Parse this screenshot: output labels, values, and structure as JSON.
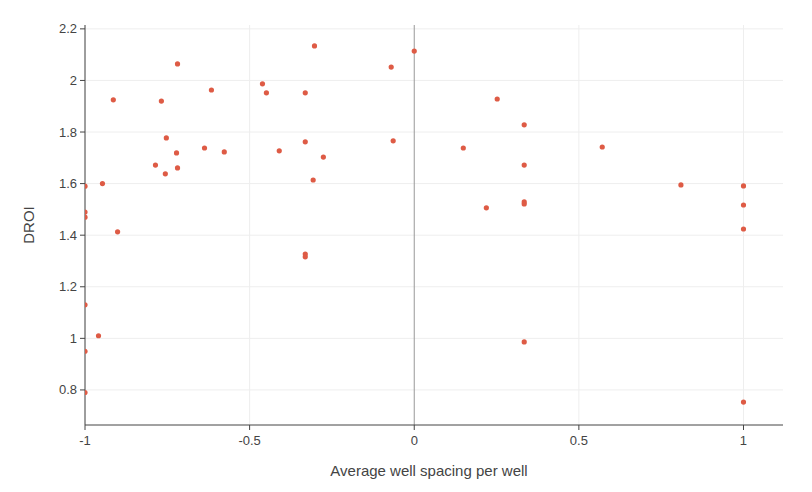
{
  "chart_data": {
    "type": "scatter",
    "x_label": "Average well spacing per well",
    "y_label": "DROI",
    "x": [
      -1,
      -1,
      -1,
      -1,
      -1,
      -1,
      -0.959,
      -0.947,
      -0.914,
      -0.901,
      -0.786,
      -0.768,
      -0.753,
      -0.756,
      -0.719,
      -0.722,
      -0.719,
      -0.637,
      -0.616,
      -0.577,
      -0.461,
      -0.449,
      -0.41,
      -0.331,
      -0.331,
      -0.331,
      -0.331,
      -0.303,
      -0.307,
      -0.276,
      -0.07,
      -0.064,
      0,
      0.149,
      0.219,
      0.252,
      0.334,
      0.334,
      0.334,
      0.334,
      0.334,
      0.571,
      0.81,
      1,
      1,
      1,
      1
    ],
    "values": [
      1.59,
      1.49,
      1.47,
      1.13,
      0.95,
      0.79,
      1.01,
      1.6,
      1.925,
      1.413,
      1.672,
      1.92,
      1.777,
      1.638,
      2.064,
      1.719,
      1.661,
      1.738,
      1.963,
      1.723,
      1.987,
      1.952,
      1.727,
      1.952,
      1.762,
      1.327,
      1.316,
      2.134,
      1.614,
      1.703,
      2.052,
      1.766,
      2.114,
      1.738,
      1.506,
      1.928,
      1.828,
      1.672,
      1.529,
      1.521,
      0.986,
      1.742,
      1.595,
      1.591,
      1.517,
      1.424,
      0.753
    ],
    "color": "#de5b45",
    "marker": "circle",
    "xlim": [
      -1,
      1.12
    ],
    "ylim": [
      0.664,
      2.215
    ],
    "xticks": [
      -1,
      -0.5,
      0,
      0.5,
      1
    ],
    "yticks": [
      0.8,
      1,
      1.2,
      1.4,
      1.6,
      1.8,
      2,
      2.2
    ],
    "grid": true
  }
}
